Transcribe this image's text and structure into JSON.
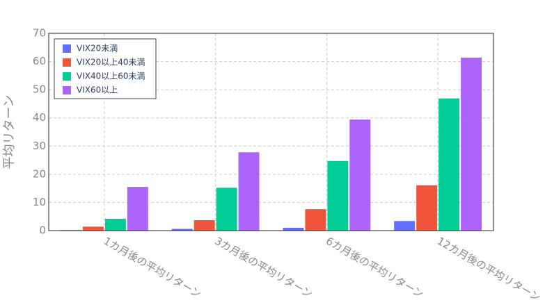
{
  "chart_data": {
    "type": "bar",
    "y_label": "平均リターン",
    "categories": [
      "1カ月後の平均リターン",
      "3カ月後の平均リターン",
      "6カ月後の平均リターン",
      "12カ月後の平均リターン"
    ],
    "series": [
      {
        "name": "VIX20未満",
        "color": "#636efa",
        "values": [
          0.2,
          0.6,
          1.0,
          3.4
        ]
      },
      {
        "name": "VIX20以上40未満",
        "color": "#ef553b",
        "values": [
          1.4,
          3.7,
          7.6,
          16.1
        ]
      },
      {
        "name": "VIX40以上60未満",
        "color": "#00cc96",
        "values": [
          4.2,
          15.2,
          24.7,
          46.9
        ]
      },
      {
        "name": "VIX60以上",
        "color": "#ab63fa",
        "values": [
          15.5,
          27.8,
          39.4,
          61.4
        ]
      }
    ],
    "ylim": [
      0,
      70
    ],
    "yticks": [
      0,
      10,
      20,
      30,
      40,
      50,
      60,
      70
    ],
    "grid": true,
    "legend": "top-left"
  }
}
